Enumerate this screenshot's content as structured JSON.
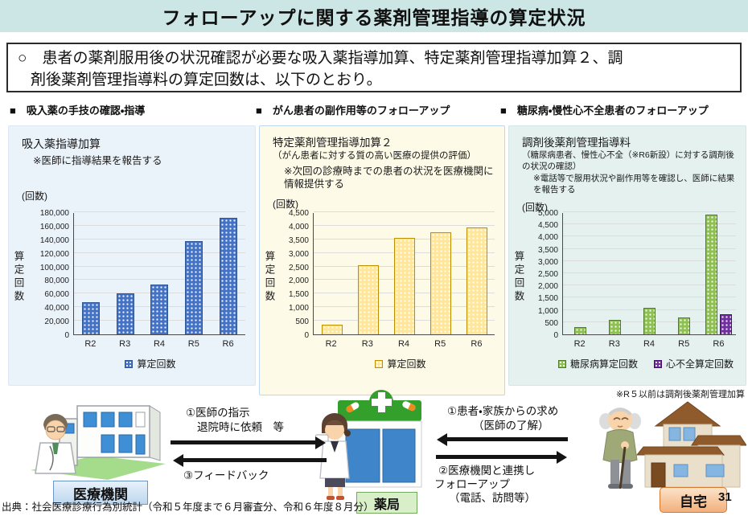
{
  "page": {
    "title": "フォローアップに関する薬剤管理指導の算定状況",
    "statement_line1": "○　患者の薬剤服用後の状況確認が必要な吸入薬指導加算、特定薬剤管理指導加算２、調",
    "statement_line2": "剤後薬剤管理指導料の算定回数は、以下のとおり。",
    "source": "出典：社会医療診療行為別統計（令和５年度まで６月審査分、令和６年度８月分）",
    "page_number": "31"
  },
  "section_headers": [
    "■　吸入薬の手技の確認・指導",
    "■　がん患者の副作用等のフォローアップ",
    "■　糖尿病・慢性心不全患者のフォローアップ"
  ],
  "panels": [
    {
      "title": "吸入薬指導加算",
      "subtitle": "",
      "note": "※医師に指導結果を報告する",
      "unit": "(回数)"
    },
    {
      "title": "特定薬剤管理指導加算２",
      "subtitle": "（がん患者に対する質の高い医療の提供の評価）",
      "note": "※次回の診療時までの患者の状況を医療機関に情報提供する",
      "unit": "(回数)"
    },
    {
      "title": "調剤後薬剤管理指導料",
      "subtitle": "（糖尿病患者、慢性心不全（※R6新設）に対する調剤後の状況の確認）",
      "note": "※電話等で服用状況や副作用等を確認し、医師に結果を報告する",
      "unit": "(回数)",
      "footnote": "※R５以前は調剤後薬剤管理加算"
    }
  ],
  "chart_data": [
    {
      "type": "bar",
      "title": "吸入薬指導加算",
      "categories": [
        "R2",
        "R3",
        "R4",
        "R5",
        "R6"
      ],
      "series": [
        {
          "name": "算定回数",
          "values": [
            47000,
            61000,
            73000,
            137000,
            172000
          ],
          "color": "#4472C4",
          "border": "#2E5596"
        }
      ],
      "ylabel": "算定回数",
      "xlabel": "",
      "ylim": [
        0,
        180000
      ],
      "ytick_step": 20000,
      "grid": true,
      "legend_position": "bottom"
    },
    {
      "type": "bar",
      "title": "特定薬剤管理指導加算２",
      "categories": [
        "R2",
        "R3",
        "R4",
        "R5",
        "R6"
      ],
      "series": [
        {
          "name": "算定回数",
          "values": [
            350,
            2550,
            3550,
            3750,
            3950
          ],
          "color": "#FFE699",
          "border": "#BF8F00"
        }
      ],
      "ylabel": "算定回数",
      "xlabel": "",
      "ylim": [
        0,
        4500
      ],
      "ytick_step": 500,
      "grid": true,
      "legend_position": "bottom"
    },
    {
      "type": "bar",
      "title": "調剤後薬剤管理指導料",
      "categories": [
        "R2",
        "R3",
        "R4",
        "R5",
        "R6"
      ],
      "series": [
        {
          "name": "糖尿病算定回数",
          "values": [
            300,
            600,
            1100,
            680,
            4900
          ],
          "color": "#8FC152",
          "border": "#4F7A28"
        },
        {
          "name": "心不全算定回数",
          "values": [
            null,
            null,
            null,
            null,
            830
          ],
          "color": "#7030A0",
          "border": "#43116B"
        }
      ],
      "ylabel": "算定回数",
      "xlabel": "",
      "ylim": [
        0,
        5000
      ],
      "ytick_step": 500,
      "grid": true,
      "legend_position": "bottom"
    }
  ],
  "flow": {
    "hospital_label": "医療機関",
    "pharmacy_label": "薬局",
    "home_label": "自宅",
    "left_arrow_top_line1": "①医師の指示",
    "left_arrow_top_line2": "退院時に依頼　等",
    "left_arrow_bottom": "③フィードバック",
    "right_arrow_top_line1": "①患者・家族からの求め",
    "right_arrow_top_line2": "（医師の了解）",
    "right_arrow_bottom_line1": "②医療機関と連携し",
    "right_arrow_bottom_line2": "フォローアップ",
    "right_arrow_bottom_line3": "（電話、訪問等）"
  },
  "colors": {
    "header_bg": "#CBE6E4",
    "panel1_bg": "#EAF2FA",
    "panel2_bg": "#FDFBE7",
    "panel3_bg": "#E4F1EF",
    "bar_blue": "#4472C4",
    "bar_yellow": "#FFE699",
    "bar_green": "#8FC152",
    "bar_purple": "#7030A0"
  }
}
